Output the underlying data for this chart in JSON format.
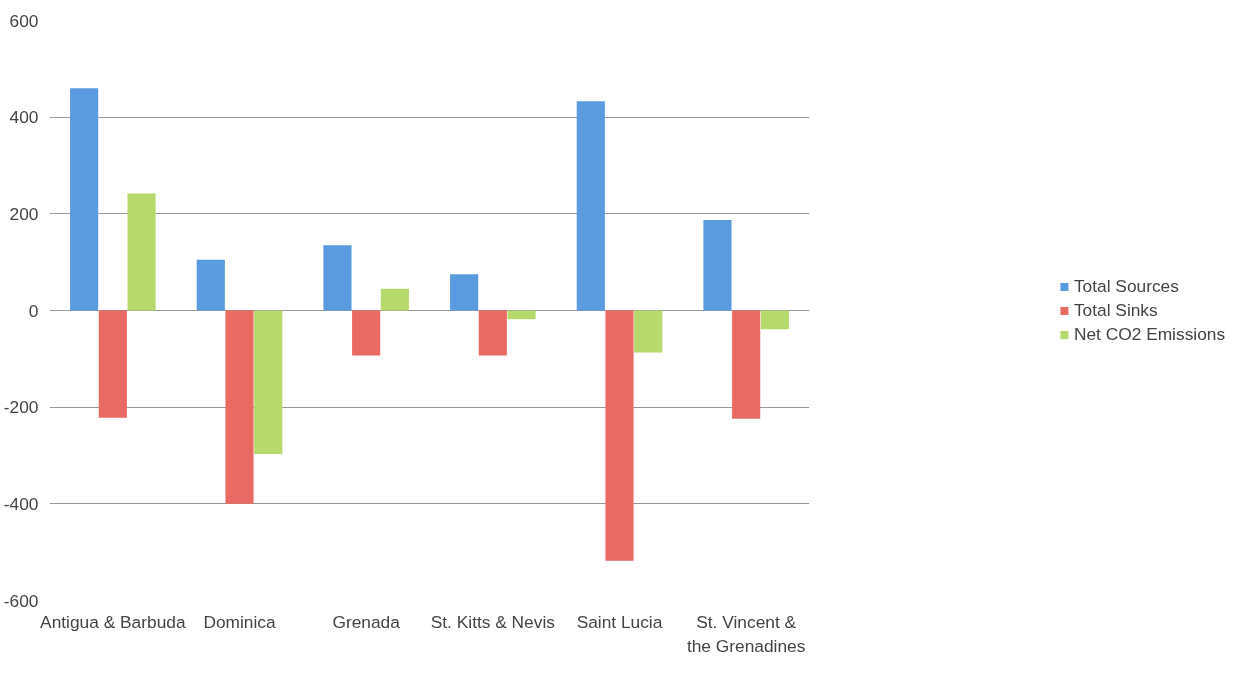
{
  "chart_data": {
    "type": "bar",
    "categories": [
      "Antigua & Barbuda",
      "Dominica",
      "Grenada",
      "St. Kitts & Nevis",
      "Saint Lucia",
      "St. Vincent & the Grenadines"
    ],
    "series": [
      {
        "name": "Total Sources",
        "color": "#5a9be0",
        "values": [
          460,
          105,
          135,
          75,
          433,
          187
        ]
      },
      {
        "name": "Total Sinks",
        "color": "#e86a62",
        "values": [
          -222,
          -400,
          -93,
          -93,
          -518,
          -224
        ]
      },
      {
        "name": "Net CO2 Emissions",
        "color": "#b5d96a",
        "values": [
          242,
          -297,
          45,
          -18,
          -87,
          -39
        ]
      }
    ],
    "ylim": [
      -600,
      600
    ],
    "yticks": [
      -600,
      -400,
      -200,
      0,
      200,
      400,
      600
    ],
    "grid": "y",
    "legend": "right"
  }
}
